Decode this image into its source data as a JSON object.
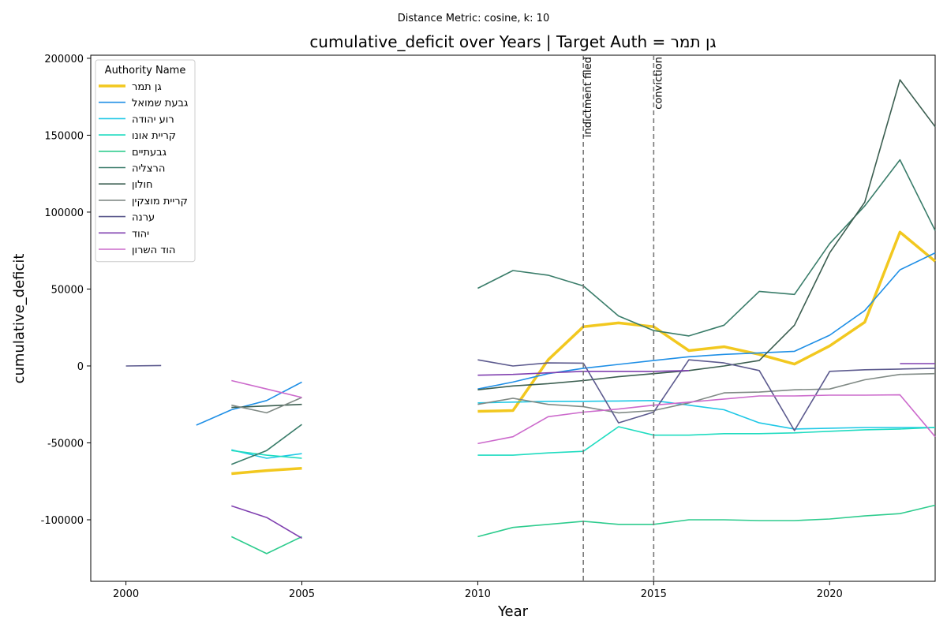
{
  "chart_data": {
    "type": "line",
    "suptitle": "Distance Metric: cosine, k: 10",
    "title": "cumulative_deficit over Years | Target Auth = ג⁠ן תמר",
    "xlabel": "Year",
    "ylabel": "cumulative_deficit",
    "xlim": [
      1999,
      2023
    ],
    "ylim": [
      -140000,
      202000
    ],
    "xticks": [
      2000,
      2005,
      2010,
      2015,
      2020
    ],
    "yticks": [
      -100000,
      -50000,
      0,
      50000,
      100000,
      150000,
      200000
    ],
    "grid": false,
    "legend": {
      "title": "Authority Name",
      "placement": "top-left"
    },
    "vlines": [
      {
        "x": 2013,
        "label": "indictment filed"
      },
      {
        "x": 2015,
        "label": "conviction"
      }
    ],
    "series": [
      {
        "name": "גן תמר",
        "color": "#f2c81f",
        "width": 3.5,
        "values": [
          null,
          null,
          null,
          -70000,
          -68000,
          -66500,
          null,
          null,
          null,
          null,
          -29500,
          -29000,
          4000,
          25500,
          28000,
          25500,
          10000,
          12500,
          7500,
          1200,
          13000,
          28500,
          87000,
          68000
        ]
      },
      {
        "name": "גבעת שמואל",
        "color": "#1f8fe6",
        "width": 1.6,
        "values": [
          null,
          null,
          -38500,
          -28500,
          -22500,
          -10500,
          null,
          null,
          null,
          null,
          -15000,
          -10500,
          -5000,
          -1500,
          1000,
          3500,
          6000,
          7500,
          8500,
          9500,
          20000,
          36000,
          62500,
          73500
        ]
      },
      {
        "name": "רוע יהודה",
        "color": "#1fc8e6",
        "width": 1.6,
        "values": [
          null,
          null,
          null,
          -54500,
          -60000,
          -57000,
          null,
          null,
          null,
          null,
          -24000,
          -23500,
          -23000,
          -23000,
          -22800,
          -22500,
          -25500,
          -28500,
          -37000,
          -41000,
          -40500,
          -40000,
          -40000,
          -40000
        ]
      },
      {
        "name": "קריית אונו",
        "color": "#1fdcc0",
        "width": 1.6,
        "values": [
          null,
          null,
          null,
          -55000,
          -58000,
          -60000,
          null,
          null,
          null,
          null,
          -58000,
          -58000,
          -56500,
          -55500,
          -39500,
          -45000,
          -45000,
          -44000,
          -44000,
          -43500,
          -42500,
          -41500,
          -41000,
          -40000
        ]
      },
      {
        "name": "גבעתיים",
        "color": "#2ecc8e",
        "width": 1.6,
        "values": [
          null,
          null,
          null,
          -111000,
          -122000,
          -111000,
          null,
          null,
          null,
          null,
          -111000,
          -105000,
          -103000,
          -101000,
          -103000,
          -103000,
          -100000,
          -100000,
          -100500,
          -100500,
          -99500,
          -97500,
          -96000,
          -90500
        ]
      },
      {
        "name": "הרצליה",
        "color": "#3a7d6a",
        "width": 1.6,
        "values": [
          null,
          null,
          null,
          -64000,
          -55000,
          -38000,
          null,
          null,
          null,
          null,
          50500,
          62000,
          59000,
          52000,
          32500,
          23000,
          19500,
          26500,
          48500,
          46500,
          79500,
          104000,
          134000,
          88000
        ]
      },
      {
        "name": "חולון",
        "color": "#3b5e50",
        "width": 1.6,
        "values": [
          null,
          null,
          null,
          -27000,
          -26000,
          -25000,
          null,
          null,
          null,
          null,
          -15500,
          -13000,
          -11500,
          -9500,
          -7000,
          -5000,
          -3000,
          0,
          3500,
          26500,
          73500,
          106500,
          186000,
          155500
        ]
      },
      {
        "name": "קריית מוצקין",
        "color": "#808a85",
        "width": 1.6,
        "values": [
          null,
          null,
          null,
          -25500,
          -30500,
          -20500,
          null,
          null,
          null,
          null,
          -25000,
          -21000,
          -25000,
          -26500,
          -30500,
          -29000,
          -24000,
          -17500,
          -17000,
          -15500,
          -15000,
          -9000,
          -5500,
          -5000
        ]
      },
      {
        "name": "ערנה",
        "color": "#5c5a8e",
        "width": 1.6,
        "values": [
          0,
          300,
          null,
          null,
          null,
          null,
          null,
          null,
          null,
          null,
          4000,
          0,
          2000,
          1800,
          -37000,
          -30000,
          4000,
          2000,
          -3000,
          -42000,
          -3500,
          -2500,
          -2000,
          -1500
        ]
      },
      {
        "name": "יהוד",
        "color": "#8040b0",
        "width": 1.6,
        "values": [
          null,
          null,
          null,
          -91000,
          -98500,
          -112000,
          null,
          null,
          null,
          null,
          -6000,
          -5500,
          -4500,
          -3500,
          -3500,
          -3500,
          -3000,
          null,
          null,
          null,
          null,
          null,
          1500,
          1500
        ]
      },
      {
        "name": "הוד השרון",
        "color": "#cc6acc",
        "width": 1.6,
        "values": [
          null,
          null,
          null,
          -9500,
          -15000,
          -20500,
          null,
          null,
          null,
          null,
          -50500,
          -46000,
          -33000,
          -30000,
          -28000,
          -25500,
          -23500,
          -21500,
          -19500,
          -19500,
          -19000,
          -19000,
          -18800,
          -46000
        ]
      }
    ],
    "x": [
      2000,
      2001,
      2002,
      2003,
      2004,
      2005,
      2006,
      2007,
      2008,
      2009,
      2010,
      2011,
      2012,
      2013,
      2014,
      2015,
      2016,
      2017,
      2018,
      2019,
      2020,
      2021,
      2022,
      2023
    ]
  }
}
